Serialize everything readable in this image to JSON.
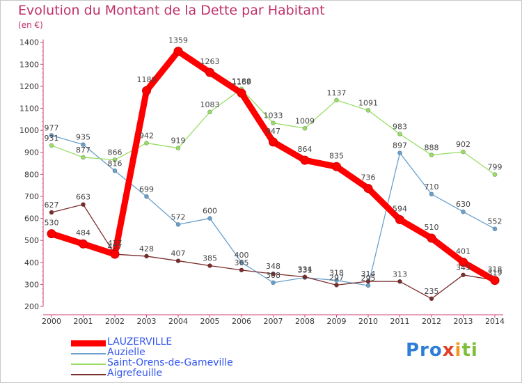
{
  "title": "Evolution du Montant de la Dette par Habitant",
  "unit_label": "(en €)",
  "logo_text": "Proxiti",
  "chart_data": {
    "type": "line",
    "title": "Evolution du Montant de la Dette par Habitant",
    "ylabel": "(en €)",
    "xlabel": "",
    "ylim": [
      200,
      1400
    ],
    "y_ticks": [
      200,
      300,
      400,
      500,
      600,
      700,
      800,
      900,
      1000,
      1100,
      1200,
      1300,
      1400
    ],
    "grid": false,
    "legend_position": "bottom-left",
    "x": [
      "2000",
      "2001",
      "2002",
      "2003",
      "2004",
      "2005",
      "2006",
      "2007",
      "2008",
      "2009",
      "2010",
      "2011",
      "2012",
      "2013",
      "2014"
    ],
    "series": [
      {
        "name": "LAUZERVILLE",
        "color": "#ff0000",
        "values": [
          530,
          484,
          437,
          1180,
          1359,
          1263,
          1169,
          947,
          864,
          835,
          736,
          594,
          510,
          401,
          318
        ]
      },
      {
        "name": "Auzielle",
        "color": "#6aa0cc",
        "values": [
          977,
          935,
          816,
          699,
          572,
          600,
          400,
          308,
          331,
          318,
          295,
          897,
          710,
          630,
          552
        ]
      },
      {
        "name": "Saint-Orens-de-Gameville",
        "color": "#99dd66",
        "values": [
          931,
          877,
          866,
          942,
          919,
          1083,
          1188,
          1033,
          1009,
          1137,
          1091,
          983,
          888,
          902,
          799
        ]
      },
      {
        "name": "Aigrefeuille",
        "color": "#7a2c2c",
        "values": [
          627,
          663,
          437,
          428,
          407,
          385,
          365,
          348,
          334,
          297,
          314,
          313,
          235,
          343,
          319
        ]
      }
    ]
  }
}
